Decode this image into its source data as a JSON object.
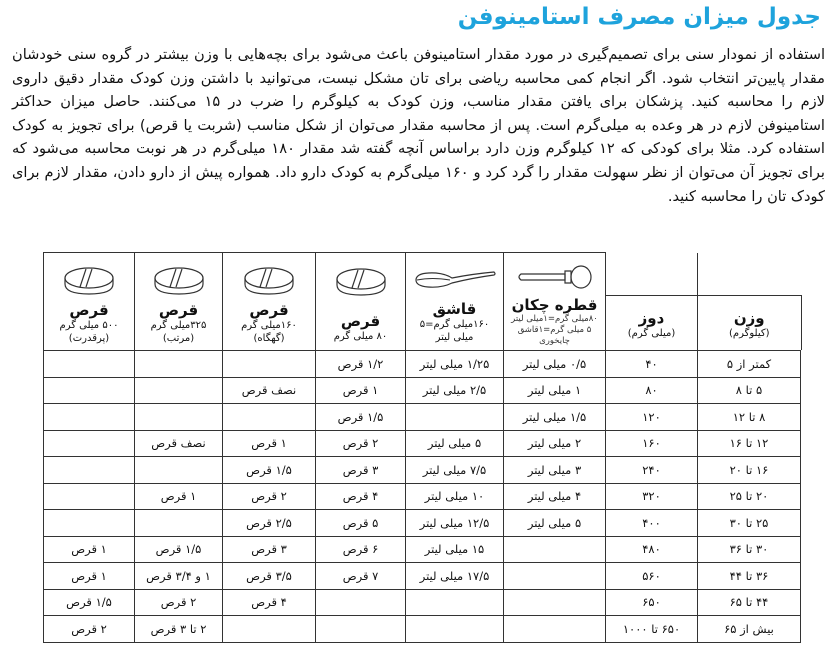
{
  "title": "جدول میزان مصرف استامینوفن",
  "paragraph": "استفاده از نمودار سنی برای تصمیم‌گیری در مورد مقدار استامینوفن باعث می‌شود برای بچه‌هایی با وزن بیشتر در گروه سنی خودشان مقدار پایین‌تر انتخاب شود. اگر انجام کمی محاسبه ریاضی برای تان مشکل نیست، می‌توانید با داشتن وزن کودک مقدار دقیق داروی لازم را محاسبه کنید. پزشکان برای یافتن مقدار مناسب، وزن کودک به کیلوگرم را ضرب در ۱۵ می‌کنند. حاصل میزان حداکثر استامینوفن لازم در هر وعده به میلی‌گرم است. پس از محاسبه مقدار می‌توان از شکل مناسب (شربت یا قرص) برای تجویز به کودک استفاده کرد. مثلا برای کودکی که ۱۲ کیلوگرم وزن دارد براساس آنچه گفته شد مقدار ۱۸۰ میلی‌گرم در هر نوبت محاسبه می‌شود که برای تجویز آن می‌توان از نظر سهولت مقدار را گرد کرد و ۱۶۰ میلی‌گرم به کودک دارو داد. همواره پیش از دارو دادن، مقدار لازم برای کودک تان را محاسبه کنید.",
  "columns": [
    {
      "name": "وزن",
      "sub": "(کیلوگرم)",
      "icon": ""
    },
    {
      "name": "دوز",
      "sub": "(میلی گرم)",
      "icon": ""
    },
    {
      "name": "قطره چکان",
      "sub": "۸۰میلی گرم=۱میلی لیتر",
      "sub2": "۵ میلی گرم=۱قاشق",
      "sub3": "چایخوری",
      "icon": "dropper-icon"
    },
    {
      "name": "قاشق",
      "sub": "۱۶۰میلی گرم=۵",
      "sub2": "میلی لیتر",
      "icon": "spoon-icon"
    },
    {
      "name": "قرص",
      "sub": "۸۰ میلی گرم",
      "icon": "tablet-icon"
    },
    {
      "name": "قرص",
      "sub": "۱۶۰میلی گرم",
      "sub2": "(گهگاه)",
      "icon": "tablet-icon"
    },
    {
      "name": "قرص",
      "sub": "۳۲۵میلی گرم",
      "sub2": "(مرتب)",
      "icon": "tablet-icon"
    },
    {
      "name": "قرص",
      "sub": "۵۰۰ میلی گرم",
      "sub2": "(پرقدرت)",
      "icon": "tablet-icon"
    }
  ],
  "rows": [
    [
      "کمتر از ۵",
      "۴۰",
      "۰/۵ میلی لیتر",
      "۱/۲۵ میلی لیتر",
      "۱/۲ قرص",
      "",
      "",
      ""
    ],
    [
      "۵ تا ۸",
      "۸۰",
      "۱ میلی لیتر",
      "۲/۵ میلی لیتر",
      "۱ قرص",
      "نصف قرص",
      "",
      ""
    ],
    [
      "۸ تا ۱۲",
      "۱۲۰",
      "۱/۵ میلی لیتر",
      "",
      "۱/۵ قرص",
      "",
      "",
      ""
    ],
    [
      "۱۲ تا ۱۶",
      "۱۶۰",
      "۲ میلی لیتر",
      "۵ میلی لیتر",
      "۲ قرص",
      "۱ قرص",
      "نصف قرص",
      ""
    ],
    [
      "۱۶ تا ۲۰",
      "۲۴۰",
      "۳ میلی لیتر",
      "۷/۵ میلی لیتر",
      "۳ قرص",
      "۱/۵ قرص",
      "",
      ""
    ],
    [
      "۲۰ تا ۲۵",
      "۳۲۰",
      "۴ میلی لیتر",
      "۱۰ میلی لیتر",
      "۴ قرص",
      "۲ قرص",
      "۱ قرص",
      ""
    ],
    [
      "۲۵ تا ۳۰",
      "۴۰۰",
      "۵ میلی لیتر",
      "۱۲/۵ میلی لیتر",
      "۵ قرص",
      "۲/۵ قرص",
      "",
      ""
    ],
    [
      "۳۰ تا ۳۶",
      "۴۸۰",
      "",
      "۱۵ میلی لیتر",
      "۶ قرص",
      "۳ قرص",
      "۱/۵ قرص",
      "۱ قرص"
    ],
    [
      "۳۶ تا ۴۴",
      "۵۶۰",
      "",
      "۱۷/۵ میلی لیتر",
      "۷ قرص",
      "۳/۵ قرص",
      "۱ و ۳/۴ قرص",
      "۱ قرص"
    ],
    [
      "۴۴ تا ۶۵",
      "۶۵۰",
      "",
      "",
      "",
      "۴ قرص",
      "۲ قرص",
      "۱/۵ قرص"
    ],
    [
      "بیش از ۶۵",
      "۶۵۰ تا ۱۰۰۰",
      "",
      "",
      "",
      "",
      "۲ تا ۳ قرص",
      "۲ قرص"
    ]
  ],
  "colors": {
    "title": "#1ea3dc",
    "border": "#333333"
  }
}
